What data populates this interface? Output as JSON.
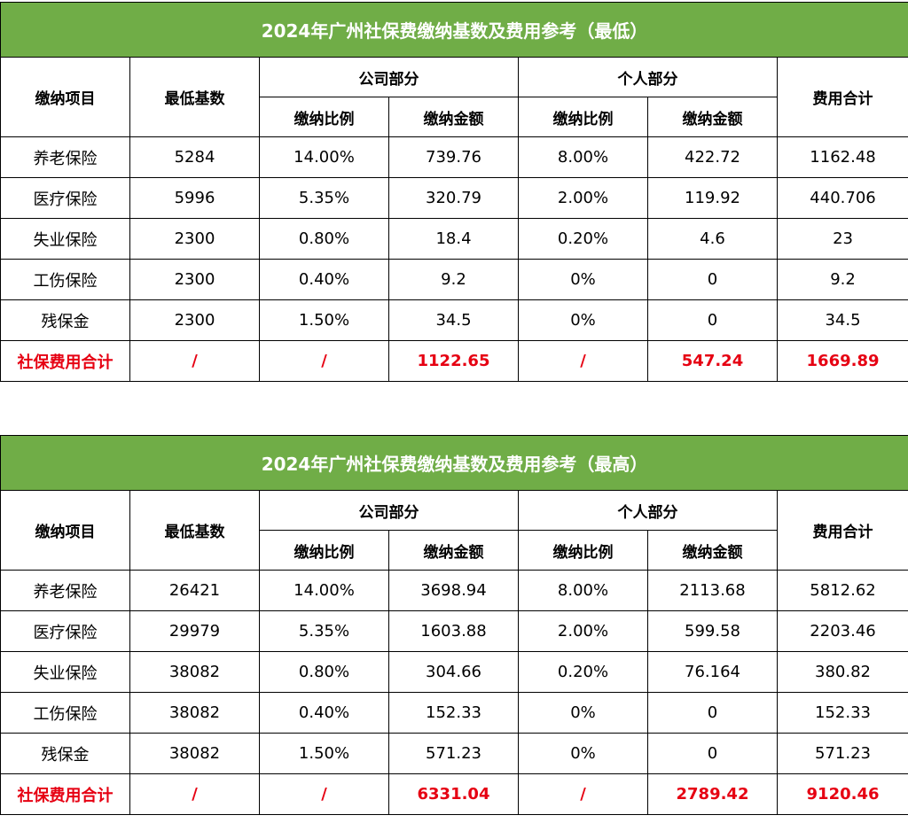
{
  "tables": [
    {
      "title": "2024年广州社保费缴纳基数及费用参考（最低）",
      "headers": {
        "item": "缴纳项目",
        "base": "最低基数",
        "company": "公司部分",
        "personal": "个人部分",
        "total": "费用合计",
        "company_rate": "缴纳比例",
        "company_amount": "缴纳金额",
        "personal_rate": "缴纳比例",
        "personal_amount": "缴纳金额"
      },
      "rows": [
        [
          "养老保险",
          "5284",
          "14.00%",
          "739.76",
          "8.00%",
          "422.72",
          "1162.48"
        ],
        [
          "医疗保险",
          "5996",
          "5.35%",
          "320.79",
          "2.00%",
          "119.92",
          "440.706"
        ],
        [
          "失业保险",
          "2300",
          "0.80%",
          "18.4",
          "0.20%",
          "4.6",
          "23"
        ],
        [
          "工伤保险",
          "2300",
          "0.40%",
          "9.2",
          "0%",
          "0",
          "9.2"
        ],
        [
          "残保金",
          "2300",
          "1.50%",
          "34.5",
          "0%",
          "0",
          "34.5"
        ]
      ],
      "total_row": [
        "社保费用合计",
        "/",
        "/",
        "1122.65",
        "/",
        "547.24",
        "1669.89"
      ]
    },
    {
      "title": "2024年广州社保费缴纳基数及费用参考（最高）",
      "headers": {
        "item": "缴纳项目",
        "base": "最低基数",
        "company": "公司部分",
        "personal": "个人部分",
        "total": "费用合计",
        "company_rate": "缴纳比例",
        "company_amount": "缴纳金额",
        "personal_rate": "缴纳比例",
        "personal_amount": "缴纳金额"
      },
      "rows": [
        [
          "养老保险",
          "26421",
          "14.00%",
          "3698.94",
          "8.00%",
          "2113.68",
          "5812.62"
        ],
        [
          "医疗保险",
          "29979",
          "5.35%",
          "1603.88",
          "2.00%",
          "599.58",
          "2203.46"
        ],
        [
          "失业保险",
          "38082",
          "0.80%",
          "304.66",
          "0.20%",
          "76.164",
          "380.82"
        ],
        [
          "工伤保险",
          "38082",
          "0.40%",
          "152.33",
          "0%",
          "0",
          "152.33"
        ],
        [
          "残保金",
          "38082",
          "1.50%",
          "571.23",
          "0%",
          "0",
          "571.23"
        ]
      ],
      "total_row": [
        "社保费用合计",
        "/",
        "/",
        "6331.04",
        "/",
        "2789.42",
        "9120.46"
      ]
    }
  ],
  "colors": {
    "title_bg": "#70ad47",
    "title_text": "#ffffff",
    "total_text": "#e60012"
  }
}
